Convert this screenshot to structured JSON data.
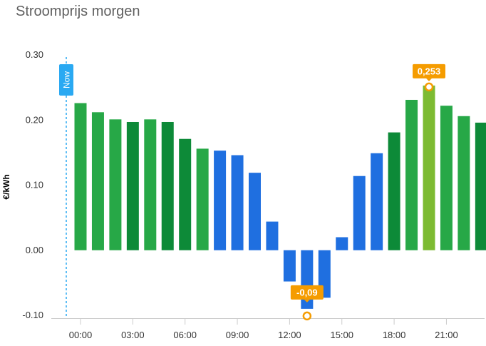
{
  "header": {
    "title": "Stroomprijs morgen"
  },
  "colors": {
    "now": "#2aa9f2",
    "badge": "#f59c00",
    "blue": "#1f6fe0",
    "green_a": "#27a847",
    "green_b": "#0d8a38",
    "highlight": "#7dbb32"
  },
  "now_marker": {
    "label": "Now",
    "hour": 0
  },
  "chart_data": {
    "type": "bar",
    "title": "Stroomprijs morgen",
    "xlabel": "",
    "ylabel": "€/kWh",
    "ylim": [
      -0.1,
      0.3
    ],
    "yticks": [
      -0.1,
      0.0,
      0.1,
      0.2,
      0.3
    ],
    "ytick_labels": [
      "-0.10",
      "0.00",
      "0.10",
      "0.20",
      "0.30"
    ],
    "xticks": [
      0,
      3,
      6,
      9,
      12,
      15,
      18,
      21
    ],
    "xtick_labels": [
      "00:00",
      "03:00",
      "06:00",
      "09:00",
      "12:00",
      "15:00",
      "18:00",
      "21:00"
    ],
    "hours": [
      0,
      1,
      2,
      3,
      4,
      5,
      6,
      7,
      8,
      9,
      10,
      11,
      12,
      13,
      14,
      15,
      16,
      17,
      18,
      19,
      20,
      21,
      22,
      23
    ],
    "values": [
      0.226,
      0.212,
      0.201,
      0.197,
      0.201,
      0.197,
      0.171,
      0.156,
      0.153,
      0.146,
      0.119,
      0.044,
      -0.048,
      -0.09,
      -0.073,
      0.02,
      0.114,
      0.149,
      0.181,
      0.231,
      0.253,
      0.222,
      0.206,
      0.196
    ],
    "bar_colors": [
      "green_a",
      "green_a",
      "green_a",
      "green_b",
      "green_a",
      "green_b",
      "green_b",
      "green_a",
      "blue",
      "blue",
      "blue",
      "blue",
      "blue",
      "blue",
      "blue",
      "blue",
      "blue",
      "blue",
      "green_b",
      "green_a",
      "highlight",
      "green_a",
      "green_a",
      "green_b"
    ],
    "annotations": [
      {
        "hour": 20,
        "value": 0.253,
        "label": "0,253"
      },
      {
        "hour": 13,
        "value": -0.09,
        "label": "-0,09"
      }
    ],
    "grid": false,
    "legend": "none"
  }
}
